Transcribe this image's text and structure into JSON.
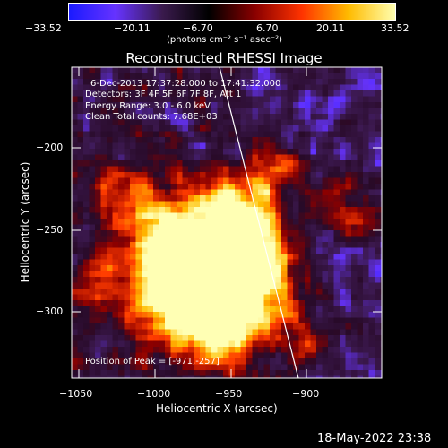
{
  "colorbar": {
    "tick_labels": [
      "−33.52",
      "−20.11",
      "−6.70",
      "6.70",
      "20.11",
      "33.52"
    ],
    "units_html": "(photons cm⁻² s⁻¹ asec⁻²)",
    "stops": [
      "#1a1aff",
      "#6633ff",
      "#3a1a4d",
      "#000000",
      "#8a0000",
      "#ff3300",
      "#ffbb00",
      "#ffffb0"
    ]
  },
  "title": "Reconstructed RHESSI Image",
  "info": {
    "line1": "6-Dec-2013 17:37:28.000 to 17:41:32.000",
    "line2": "Detectors: 3F 4F 5F 6F 7F 8F, Att 1",
    "line3": "Energy Range: 3.0 - 6.0 keV",
    "line4": "Clean     Total counts: 7.68E+03",
    "peak": "Position of Peak = [-971,-257]"
  },
  "axes": {
    "xlabel": "Heliocentric X (arcsec)",
    "ylabel": "Heliocentric Y (arcsec)",
    "xticks": [
      "−1050",
      "−1000",
      "−950",
      "−900"
    ],
    "yticks": [
      "−200",
      "−250",
      "−300"
    ]
  },
  "timestamp": "18-May-2022 23:38"
}
